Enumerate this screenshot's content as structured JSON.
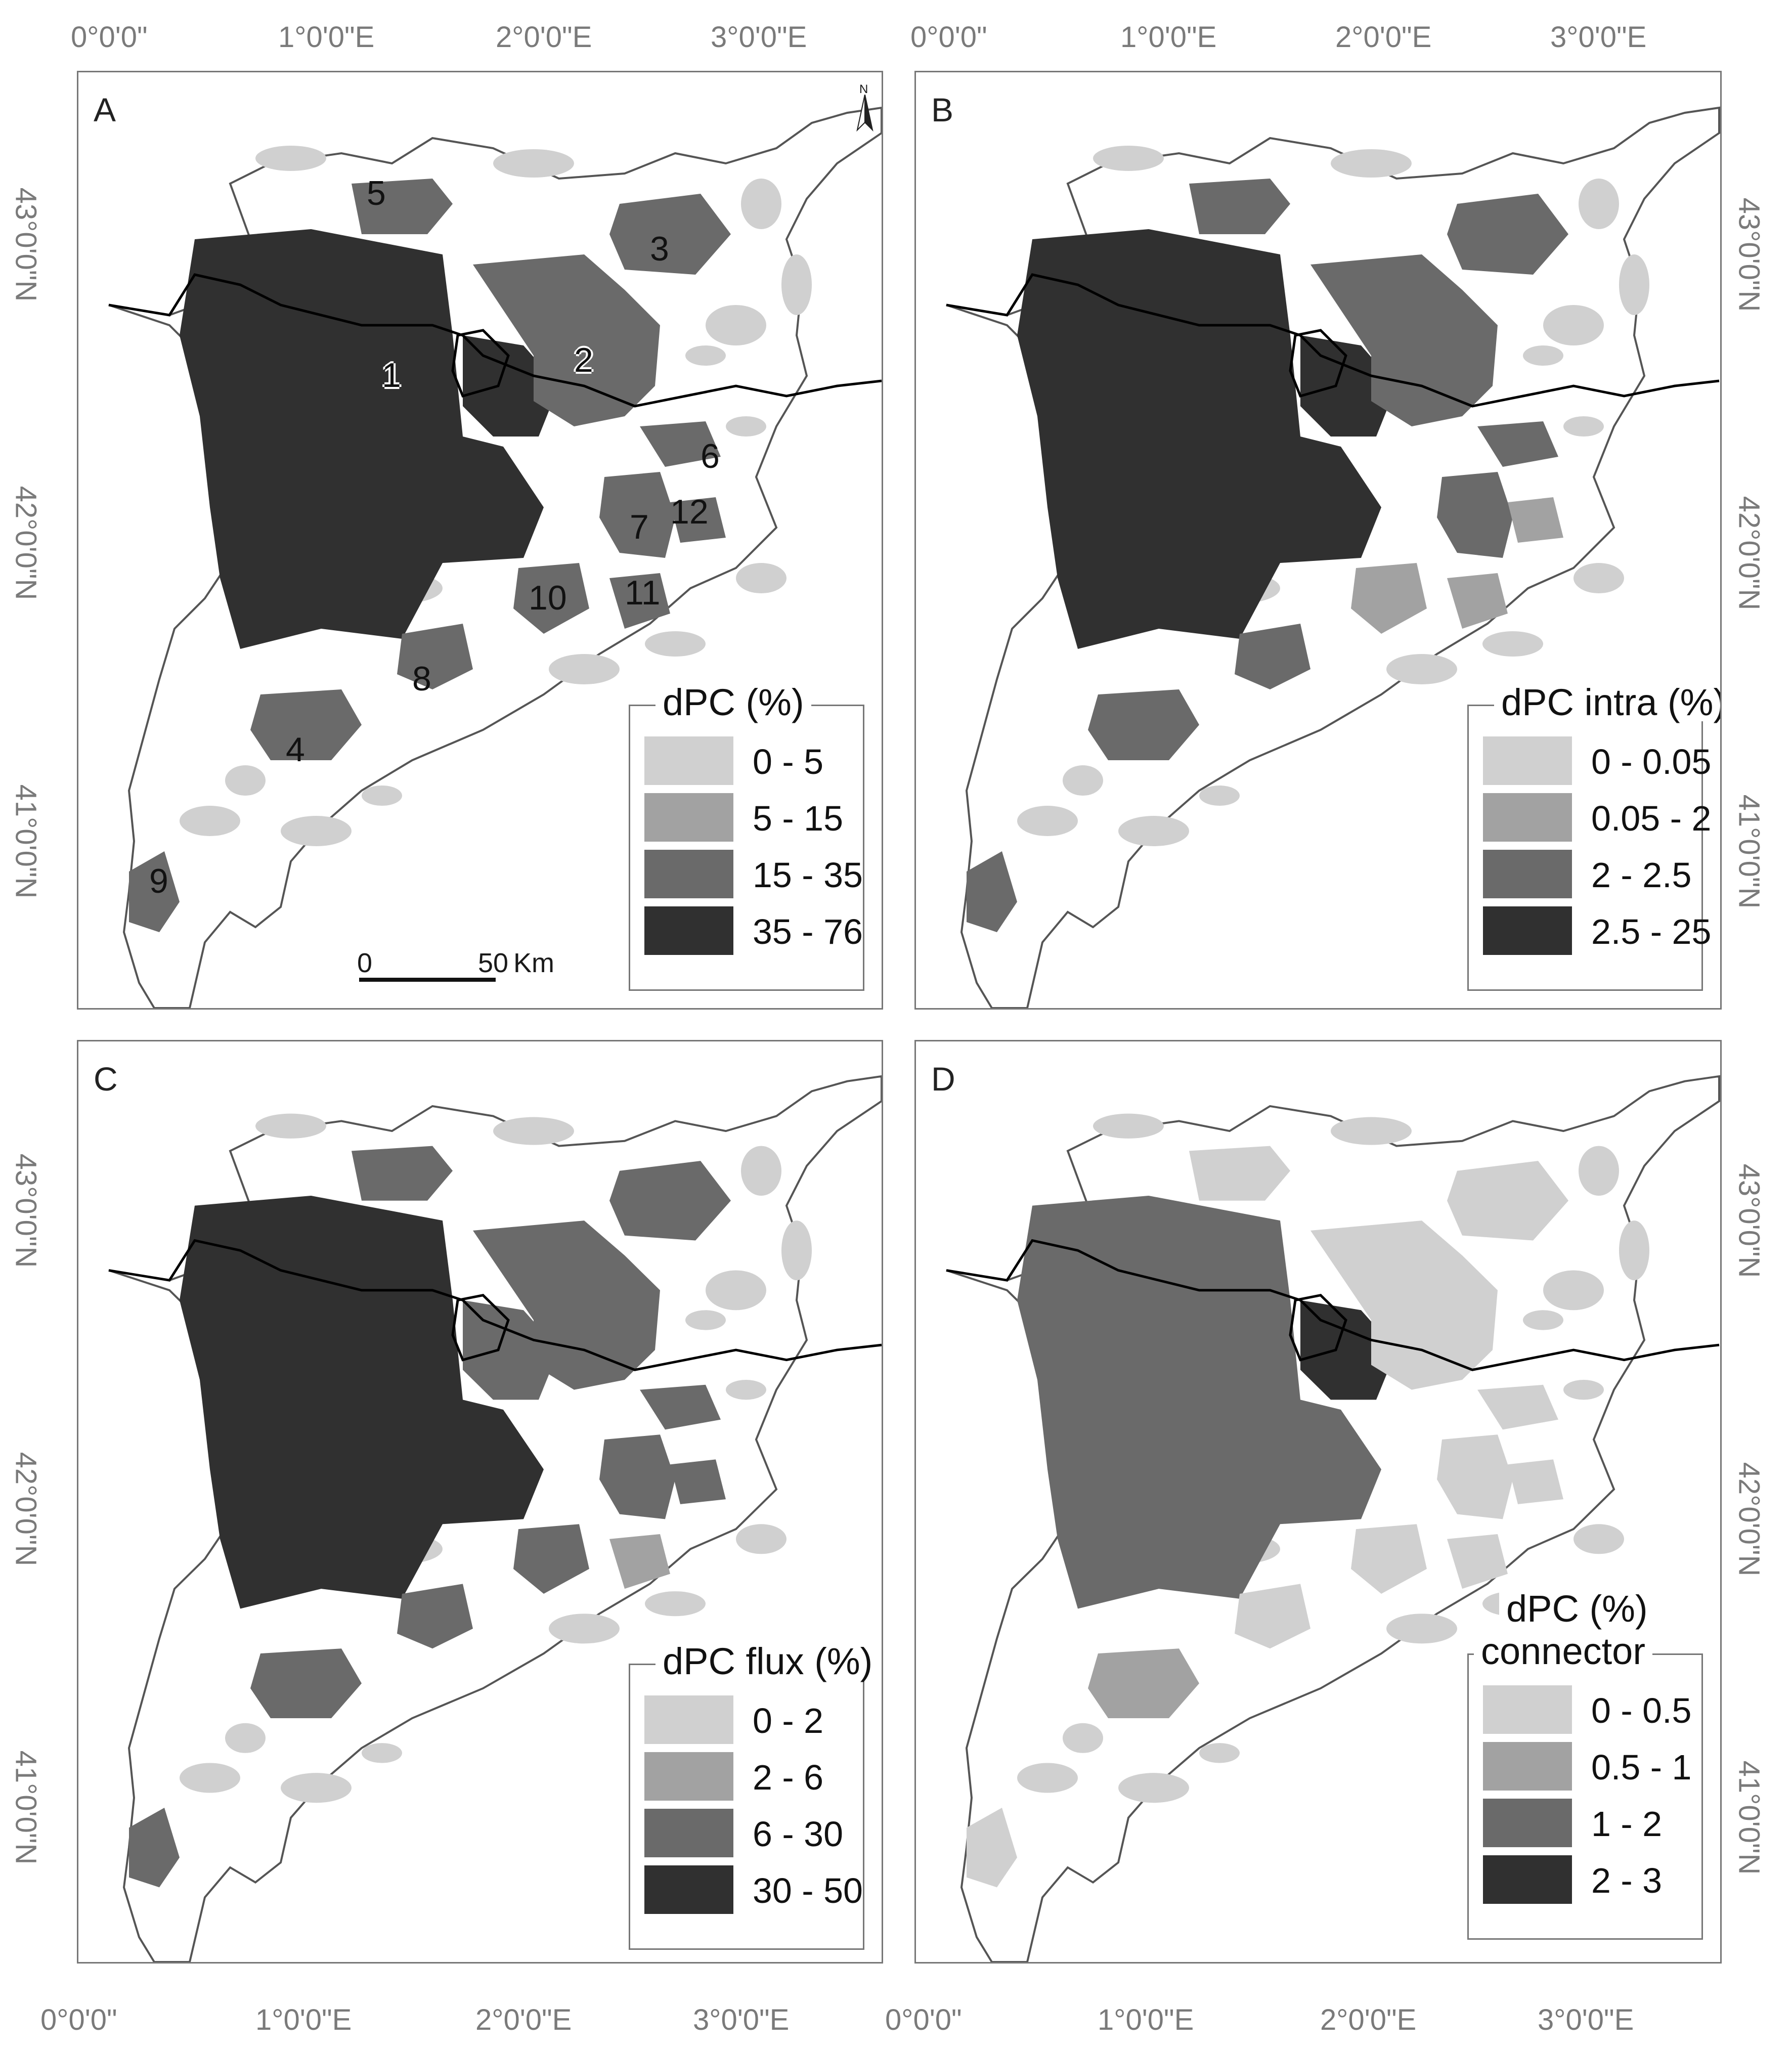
{
  "axes": {
    "x_ticks": [
      "0°0'0\"",
      "1°0'0\"E",
      "2°0'0\"E",
      "3°0'0\"E"
    ],
    "y_ticks": [
      "43°0'0\"N",
      "42°0'0\"N",
      "41°0'0\"N"
    ]
  },
  "colors": {
    "class1": "#d0d0d0",
    "class2": "#a2a2a2",
    "class3": "#6a6a6a",
    "class4": "#303030",
    "frame": "#777777",
    "coast": "#555555"
  },
  "north_arrow": {
    "letter": "N"
  },
  "scale_bar": {
    "left_label": "0",
    "right_label": "50",
    "unit": "Km"
  },
  "panels": [
    {
      "label": "A",
      "legend": {
        "title": "dPC (%)",
        "subtitle": "",
        "items": [
          "0 - 5",
          "5 - 15",
          "15 - 35",
          "35 - 76"
        ]
      },
      "shading": [
        "c3",
        "c3",
        "c2",
        "c2",
        "c2",
        "c2",
        "c2",
        "c2",
        "c2",
        "c2",
        "c2",
        "c2",
        "c2"
      ]
    },
    {
      "label": "B",
      "legend": {
        "title": "dPC intra (%)",
        "subtitle": "",
        "items": [
          "0  - 0.05",
          "0.05 - 2",
          "2 - 2.5",
          "2.5 - 25"
        ]
      },
      "shading": [
        "c3",
        "c3",
        "c2",
        "c2",
        "c2",
        "c2",
        "c2",
        "c2",
        "c2",
        "c2",
        "c1",
        "c1",
        "c1"
      ]
    },
    {
      "label": "C",
      "legend": {
        "title": "dPC flux (%)",
        "subtitle": "",
        "items": [
          "0 - 2",
          "2 - 6",
          "6 - 30",
          "30 - 50"
        ]
      },
      "shading": [
        "c3",
        "c2",
        "c2",
        "c2",
        "c2",
        "c2",
        "c2",
        "c2",
        "c2",
        "c2",
        "c2",
        "c1",
        "c2"
      ]
    },
    {
      "label": "D",
      "legend": {
        "title": "dPC (%)",
        "subtitle": "connector",
        "items": [
          "0 - 0.5",
          "0.5 - 1",
          "1 - 2",
          "2 - 3"
        ]
      },
      "shading": [
        "c2",
        "c3",
        "c0",
        "c0",
        "c1",
        "c0",
        "c0",
        "c0",
        "c0",
        "c0",
        "c0",
        "c0",
        "c0"
      ]
    }
  ],
  "patch_numbers": [
    "1",
    "2",
    "3",
    "4",
    "5",
    "6",
    "7",
    "8",
    "9",
    "10",
    "11",
    "12"
  ]
}
